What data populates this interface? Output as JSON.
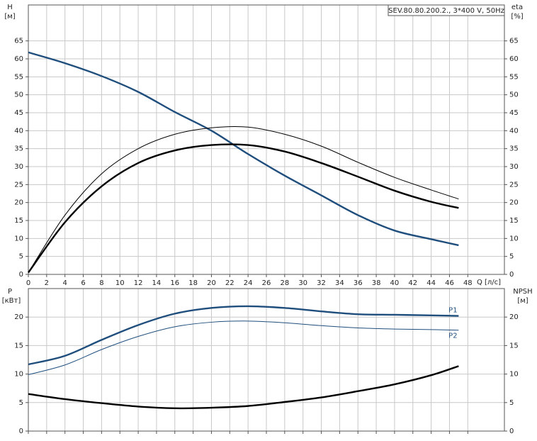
{
  "chart_data": [
    {
      "type": "line",
      "title": "SEV.80.80.200.2., 3*400 V, 50Hz",
      "ylabel": "H",
      "yunit": "[м]",
      "y2label": "eta",
      "y2unit": "[%]",
      "xlabel": "Q [л/с]",
      "x": [
        0,
        4,
        8,
        12,
        16,
        20,
        24,
        28,
        32,
        36,
        40,
        44,
        47
      ],
      "xlim": [
        0,
        52
      ],
      "xticks": [
        0,
        2,
        4,
        6,
        8,
        10,
        12,
        14,
        16,
        18,
        20,
        22,
        24,
        26,
        28,
        30,
        32,
        34,
        36,
        38,
        40,
        42,
        44,
        46,
        48
      ],
      "ylim": [
        0,
        75
      ],
      "yticks": [
        0,
        5,
        10,
        15,
        20,
        25,
        30,
        35,
        40,
        45,
        50,
        55,
        60,
        65
      ],
      "y2lim": [
        0,
        75
      ],
      "y2ticks": [
        0,
        5,
        10,
        15,
        20,
        25,
        30,
        35,
        40,
        45,
        50,
        55,
        60,
        65
      ],
      "grid": true,
      "series": [
        {
          "color": "#1f4e7d",
          "values": [
            61.8,
            58.8,
            55.2,
            50.8,
            45.2,
            40.0,
            33.5,
            27.5,
            22.0,
            16.5,
            12.2,
            9.8,
            8.1
          ]
        },
        {
          "color": "#000000",
          "axis": "y2",
          "values": [
            0.5,
            16.5,
            28,
            35,
            39,
            40.8,
            41,
            39,
            35.7,
            31.2,
            27,
            23.5,
            21
          ]
        },
        {
          "color": "#000000",
          "axis": "y2",
          "values": [
            0.5,
            14.5,
            24.5,
            31,
            34.5,
            36,
            36,
            34.2,
            31,
            27.2,
            23.3,
            20.2,
            18.5
          ]
        }
      ]
    },
    {
      "type": "line",
      "ylabel": "P",
      "yunit": "[кВт]",
      "y2label": "NPSH",
      "y2unit": "[м]",
      "x": [
        0,
        4,
        8,
        12,
        16,
        20,
        24,
        28,
        32,
        36,
        40,
        44,
        47
      ],
      "xlim": [
        0,
        52
      ],
      "ylim": [
        0,
        25
      ],
      "yticks": [
        0,
        5,
        10,
        15,
        20
      ],
      "y2lim": [
        0,
        25
      ],
      "y2ticks": [
        0,
        5,
        10,
        15,
        20
      ],
      "grid": true,
      "series": [
        {
          "name": "P1",
          "color": "#1f4e7d",
          "values": [
            11.7,
            13.2,
            16.0,
            18.6,
            20.6,
            21.6,
            21.9,
            21.6,
            21.0,
            20.5,
            20.4,
            20.3,
            20.2
          ]
        },
        {
          "name": "P2",
          "color": "#1f4e7d",
          "values": [
            9.9,
            11.6,
            14.3,
            16.6,
            18.3,
            19.1,
            19.3,
            19.0,
            18.5,
            18.1,
            17.9,
            17.8,
            17.7
          ]
        },
        {
          "color": "#000000",
          "axis": "y2",
          "values": [
            6.5,
            5.6,
            4.9,
            4.3,
            4.0,
            4.1,
            4.4,
            5.1,
            5.9,
            7.0,
            8.2,
            9.8,
            11.4
          ]
        }
      ]
    }
  ]
}
